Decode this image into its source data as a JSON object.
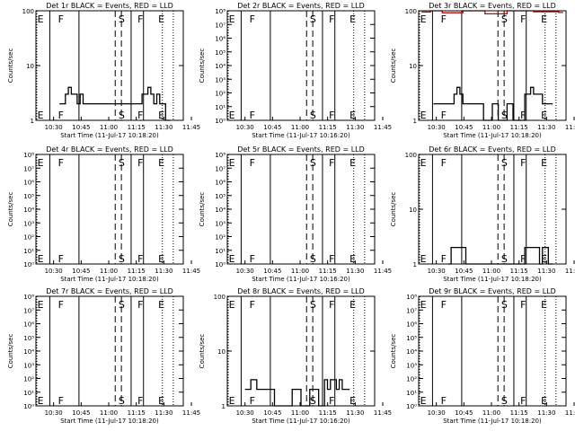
{
  "chart_data": [
    {
      "type": "line",
      "title": "Det 1r BLACK = Events, RED = LLD",
      "xlabel": "Start Time (11-Jul-17 10:18:20)",
      "ylabel": "Counts/sec",
      "yscale": "log",
      "ylim": [
        1,
        100
      ],
      "ytick_labels": [
        "1",
        "10",
        "100"
      ],
      "xtick_labels": [
        "10:30",
        "10:45",
        "11:00",
        "11:15",
        "11:30",
        "11:45"
      ],
      "markers": [
        "E",
        "F",
        "S",
        "F",
        "E"
      ],
      "series": [
        {
          "name": "Events",
          "color": "#000000",
          "x": [
            0.16,
            0.2,
            0.22,
            0.24,
            0.26,
            0.28,
            0.3,
            0.32,
            0.36,
            0.7,
            0.72,
            0.74,
            0.76,
            0.78,
            0.8,
            0.82,
            0.84,
            0.86,
            0.88
          ],
          "y": [
            2,
            3,
            4,
            3,
            3,
            2,
            3,
            2,
            2,
            2,
            3,
            3,
            4,
            3,
            2,
            3,
            2,
            2,
            1
          ]
        }
      ]
    },
    {
      "type": "line",
      "title": "Det 2r BLACK = Events, RED = LLD",
      "xlabel": "Start Time (11-Jul-17 10:16:20)",
      "ylabel": "Counts/sec",
      "yscale": "log",
      "ylim": [
        1,
        100000000
      ],
      "ytick_labels": [
        "10⁰",
        "10¹",
        "10²",
        "10³",
        "10⁴",
        "10⁵",
        "10⁶",
        "10⁷",
        "10⁸"
      ],
      "xtick_labels": [
        "10:30",
        "10:45",
        "11:00",
        "11:15",
        "11:30",
        "11:45"
      ],
      "markers": [
        "E",
        "F",
        "S",
        "F",
        "E"
      ],
      "series": []
    },
    {
      "type": "line",
      "title": "Det 3r BLACK = Events, RED = LLD",
      "xlabel": "Start Time (11-Jul-17 10:18:20)",
      "ylabel": "Counts/sec",
      "yscale": "log",
      "ylim": [
        1,
        100
      ],
      "ytick_labels": [
        "1",
        "10",
        "100"
      ],
      "xtick_labels": [
        "10:30",
        "10:45",
        "11:00",
        "11:15",
        "11:30",
        "11:45"
      ],
      "markers": [
        "E",
        "F",
        "S",
        "F",
        "E"
      ],
      "series": [
        {
          "name": "Events",
          "color": "#000000",
          "x": [
            0.1,
            0.14,
            0.2,
            0.24,
            0.26,
            0.28,
            0.3,
            0.34,
            0.4,
            0.44,
            0.5,
            0.54,
            0.6,
            0.64,
            0.72,
            0.74,
            0.76,
            0.78,
            0.8,
            0.84,
            0.88
          ],
          "y": [
            2,
            2,
            2,
            3,
            4,
            3,
            2,
            2,
            2,
            1,
            2,
            1,
            2,
            1,
            3,
            3,
            4,
            3,
            3,
            2,
            2
          ]
        },
        {
          "name": "LLD",
          "color": "#cc0000",
          "x": [
            0.02,
            0.08,
            0.16,
            0.3,
            0.45,
            0.6,
            0.78,
            0.95
          ],
          "y": [
            95,
            100,
            92,
            100,
            88,
            100,
            96,
            93
          ]
        }
      ]
    },
    {
      "type": "line",
      "title": "Det 4r BLACK = Events, RED = LLD",
      "xlabel": "Start Time (11-Jul-17 10:18:20)",
      "ylabel": "Counts/sec",
      "yscale": "log",
      "ylim": [
        1,
        100000000
      ],
      "ytick_labels": [
        "10⁰",
        "10¹",
        "10²",
        "10³",
        "10⁴",
        "10⁵",
        "10⁶",
        "10⁷",
        "10⁸"
      ],
      "xtick_labels": [
        "10:30",
        "10:45",
        "11:00",
        "11:15",
        "11:30",
        "11:45"
      ],
      "markers": [
        "E",
        "F",
        "S",
        "F",
        "E"
      ],
      "series": []
    },
    {
      "type": "line",
      "title": "Det 5r BLACK = Events, RED = LLD",
      "xlabel": "Start Time (11-Jul-17 10:16:20)",
      "ylabel": "Counts/sec",
      "yscale": "log",
      "ylim": [
        1,
        100000000
      ],
      "ytick_labels": [
        "10⁰",
        "10¹",
        "10²",
        "10³",
        "10⁴",
        "10⁵",
        "10⁶",
        "10⁷",
        "10⁸"
      ],
      "xtick_labels": [
        "10:30",
        "10:45",
        "11:00",
        "11:15",
        "11:30",
        "11:45"
      ],
      "markers": [
        "E",
        "F",
        "S",
        "F",
        "E"
      ],
      "series": []
    },
    {
      "type": "line",
      "title": "Det 6r BLACK = Events, RED = LLD",
      "xlabel": "Start Time (11-Jul-17 10:18:20)",
      "ylabel": "Counts/sec",
      "yscale": "log",
      "ylim": [
        1,
        100
      ],
      "ytick_labels": [
        "1",
        "10",
        "100"
      ],
      "xtick_labels": [
        "10:30",
        "10:45",
        "11:00",
        "11:15",
        "11:30",
        "11:45"
      ],
      "markers": [
        "E",
        "F",
        "S",
        "F",
        "E"
      ],
      "series": [
        {
          "name": "Events",
          "color": "#000000",
          "x": [
            0.2,
            0.22,
            0.24,
            0.26,
            0.28,
            0.32,
            0.4,
            0.46,
            0.52,
            0.58,
            0.64,
            0.72,
            0.74,
            0.76,
            0.78,
            0.8,
            0.82,
            0.84,
            0.86,
            0.88
          ],
          "y": [
            1,
            2,
            2,
            2,
            2,
            1,
            1,
            1,
            1,
            1,
            1,
            2,
            2,
            2,
            2,
            2,
            1,
            2,
            2,
            1
          ]
        }
      ]
    },
    {
      "type": "line",
      "title": "Det 7r BLACK = Events, RED = LLD",
      "xlabel": "Start Time (11-Jul-17 10:18:20)",
      "ylabel": "Counts/sec",
      "yscale": "log",
      "ylim": [
        1,
        100000000
      ],
      "ytick_labels": [
        "10⁰",
        "10¹",
        "10²",
        "10³",
        "10⁴",
        "10⁵",
        "10⁶",
        "10⁷",
        "10⁸"
      ],
      "xtick_labels": [
        "10:30",
        "10:45",
        "11:00",
        "11:15",
        "11:30",
        "11:45"
      ],
      "markers": [
        "E",
        "F",
        "S",
        "F",
        "E"
      ],
      "series": []
    },
    {
      "type": "line",
      "title": "Det 8r BLACK = Events, RED = LLD",
      "xlabel": "Start Time (11-Jul-17 10:16:20)",
      "ylabel": "Counts/sec",
      "yscale": "log",
      "ylim": [
        1,
        100
      ],
      "ytick_labels": [
        "1",
        "10",
        "100"
      ],
      "xtick_labels": [
        "10:30",
        "10:45",
        "11:00",
        "11:15",
        "11:30",
        "11:45"
      ],
      "markers": [
        "E",
        "F",
        "S",
        "F",
        "E"
      ],
      "series": [
        {
          "name": "Events",
          "color": "#000000",
          "x": [
            0.12,
            0.14,
            0.16,
            0.18,
            0.2,
            0.22,
            0.32,
            0.38,
            0.44,
            0.5,
            0.56,
            0.62,
            0.66,
            0.68,
            0.7,
            0.72,
            0.74,
            0.76,
            0.78,
            0.8
          ],
          "y": [
            2,
            2,
            3,
            3,
            2,
            2,
            1,
            1,
            2,
            1,
            2,
            1,
            3,
            2,
            3,
            3,
            2,
            3,
            2,
            2
          ]
        }
      ]
    },
    {
      "type": "line",
      "title": "Det 9r BLACK = Events, RED = LLD",
      "xlabel": "Start Time (11-Jul-17 10:18:20)",
      "ylabel": "Counts/sec",
      "yscale": "log",
      "ylim": [
        1,
        100000000
      ],
      "ytick_labels": [
        "10⁰",
        "10¹",
        "10²",
        "10³",
        "10⁴",
        "10⁵",
        "10⁶",
        "10⁷",
        "10⁸"
      ],
      "xtick_labels": [
        "10:30",
        "10:45",
        "11:00",
        "11:15",
        "11:30",
        "11:45"
      ],
      "markers": [
        "E",
        "F",
        "S",
        "F",
        "E"
      ],
      "series": []
    }
  ]
}
